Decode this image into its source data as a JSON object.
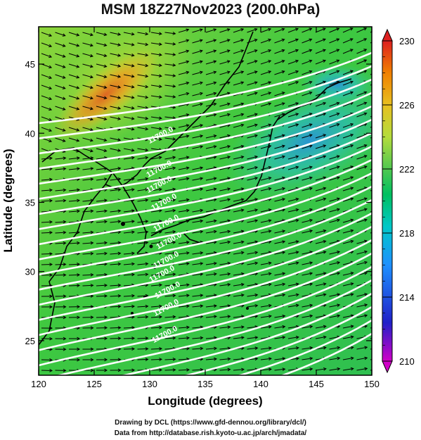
{
  "title": "MSM 18Z27Nov2023 (200.0hPa)",
  "map": {
    "xlabel": "Longitude (degrees)",
    "ylabel": "Latitude  (degrees)",
    "lon_range": [
      120,
      150
    ],
    "lat_range": [
      22.5,
      47.7
    ],
    "x_ticks": [
      "120",
      "125",
      "130",
      "135",
      "140",
      "145",
      "150"
    ],
    "y_ticks": [
      "25",
      "30",
      "35",
      "40",
      "45"
    ],
    "contour_label": "11700.0"
  },
  "colorbar": {
    "labels": [
      "230",
      "226",
      "222",
      "218",
      "214",
      "210"
    ],
    "range": [
      210,
      230
    ],
    "colors": [
      "#d000c8",
      "#2020c8",
      "#1e90ff",
      "#00c8c8",
      "#00c060",
      "#50c850",
      "#b4dc3c",
      "#e8c020",
      "#f08000",
      "#dd2020"
    ]
  },
  "credits": {
    "line1": "Drawing by DCL (https://www.gfd-dennou.org/library/dcl/)",
    "line2": "Data from http://database.rish.kyoto-u.ac.jp/arch/jmadata/"
  }
}
